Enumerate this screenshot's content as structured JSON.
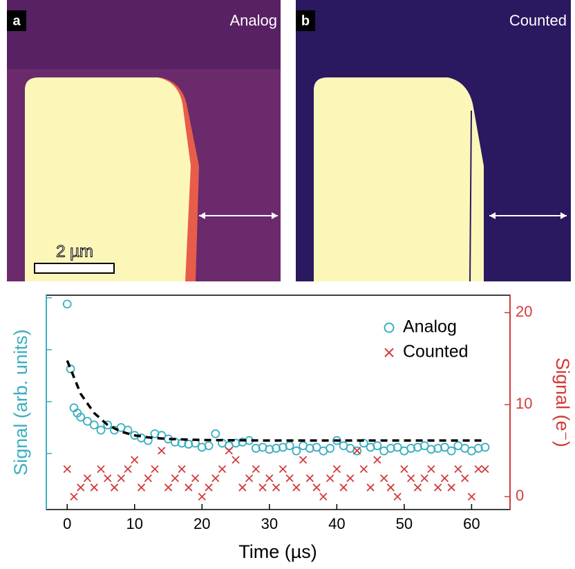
{
  "panels": [
    {
      "label": "a",
      "title": "Analog",
      "scale_bar": "2 µm"
    },
    {
      "label": "b",
      "title": "Counted"
    }
  ],
  "chart_data": {
    "type": "scatter",
    "x_label": "Time (µs)",
    "y_label": "Signal (arb. units)",
    "y2_label": "Signal (e⁻)",
    "xlim": [
      -3.1,
      65.7
    ],
    "xticks": [
      0,
      10,
      20,
      30,
      40,
      50,
      60
    ],
    "ylim": [
      -0.08,
      4.05
    ],
    "yticks": [
      1,
      2,
      3,
      4
    ],
    "y2lim": [
      -1.4,
      21.9
    ],
    "y2ticks": [
      0,
      10,
      20
    ],
    "legend": "upper right",
    "series": [
      {
        "name": "Analog",
        "color": "#3aafc0",
        "marker": "circle",
        "x": [
          0,
          0.5,
          1,
          1.5,
          2,
          3,
          4,
          5,
          6,
          7,
          8,
          9,
          10,
          11,
          12,
          13,
          14,
          15,
          16,
          17,
          18,
          19,
          20,
          21,
          22,
          23,
          24,
          25,
          26,
          27,
          28,
          29,
          30,
          31,
          32,
          33,
          34,
          35,
          36,
          37,
          38,
          39,
          40,
          41,
          42,
          43,
          44,
          45,
          46,
          47,
          48,
          49,
          50,
          51,
          52,
          53,
          54,
          55,
          56,
          57,
          58,
          59,
          60,
          61,
          62
        ],
        "values": [
          3.88,
          2.63,
          1.88,
          1.78,
          1.7,
          1.62,
          1.55,
          1.45,
          1.55,
          1.45,
          1.5,
          1.45,
          1.35,
          1.3,
          1.25,
          1.38,
          1.35,
          1.28,
          1.22,
          1.2,
          1.18,
          1.2,
          1.12,
          1.15,
          1.38,
          1.2,
          1.15,
          1.2,
          1.22,
          1.25,
          1.1,
          1.12,
          1.08,
          1.1,
          1.12,
          1.15,
          1.05,
          1.15,
          1.1,
          1.12,
          1.05,
          1.1,
          1.25,
          1.15,
          1.1,
          1.05,
          1.2,
          1.12,
          1.15,
          1.05,
          1.1,
          1.12,
          1.05,
          1.1,
          1.12,
          1.15,
          1.08,
          1.1,
          1.12,
          1.05,
          1.15,
          1.1,
          1.05,
          1.1,
          1.12
        ]
      },
      {
        "name": "Counted",
        "color": "#d43a3a",
        "marker": "x",
        "axis": "y2",
        "x": [
          0,
          1,
          2,
          3,
          4,
          5,
          6,
          7,
          8,
          9,
          10,
          11,
          12,
          13,
          14,
          15,
          16,
          17,
          18,
          19,
          20,
          21,
          22,
          23,
          24,
          25,
          26,
          27,
          28,
          29,
          30,
          31,
          32,
          33,
          34,
          35,
          36,
          37,
          38,
          39,
          40,
          41,
          42,
          43,
          44,
          45,
          46,
          47,
          48,
          49,
          50,
          51,
          52,
          53,
          54,
          55,
          56,
          57,
          58,
          59,
          60,
          61,
          62
        ],
        "values": [
          3,
          0,
          1,
          2,
          1,
          3,
          2,
          1,
          2,
          3,
          4,
          1,
          2,
          3,
          5,
          1,
          2,
          3,
          1,
          2,
          0,
          1,
          2,
          3,
          5,
          4,
          1,
          2,
          3,
          1,
          2,
          1,
          3,
          2,
          1,
          4,
          2,
          1,
          0,
          2,
          3,
          1,
          2,
          5,
          3,
          1,
          4,
          2,
          1,
          0,
          3,
          2,
          1,
          2,
          3,
          1,
          2,
          1,
          3,
          2,
          0,
          3,
          3
        ]
      }
    ],
    "fit": {
      "color": "#000000",
      "x": [
        0,
        2,
        4,
        6,
        8,
        10,
        12,
        15,
        20,
        30,
        40,
        50,
        62
      ],
      "values": [
        2.79,
        2.15,
        1.78,
        1.55,
        1.42,
        1.35,
        1.31,
        1.28,
        1.26,
        1.25,
        1.25,
        1.25,
        1.25
      ]
    }
  }
}
